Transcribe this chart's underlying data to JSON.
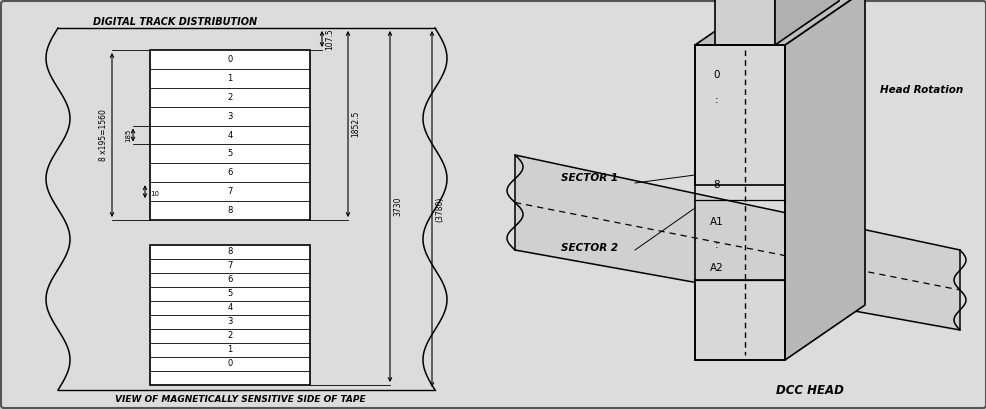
{
  "bg_color": "#c8c8c8",
  "panel_bg": "#dcdcdc",
  "title": "DIGITAL TRACK DISTRIBUTION",
  "bottom_label": "VIEW OF MAGNETICALLY SENSITIVE SIDE OF TAPE",
  "dcc_head_label": "DCC HEAD",
  "head_rotation_label": "Head Rotation",
  "sector1_label": "SECTOR 1",
  "sector2_label": "SECTOR 2",
  "dim_107_5": "107.5",
  "dim_185": "185",
  "dim_10": "10",
  "dim_8x195": "8 x195=1560",
  "dim_1852_5": "1852.5",
  "dim_3730": "3730",
  "dim_3780": "(3780)",
  "upper_tracks": [
    "0",
    "1",
    "2",
    "3",
    "4",
    "5",
    "6",
    "7",
    "8"
  ],
  "lower_tracks": [
    "8",
    "7",
    "6",
    "5",
    "4",
    "3",
    "2",
    "1",
    "0"
  ]
}
